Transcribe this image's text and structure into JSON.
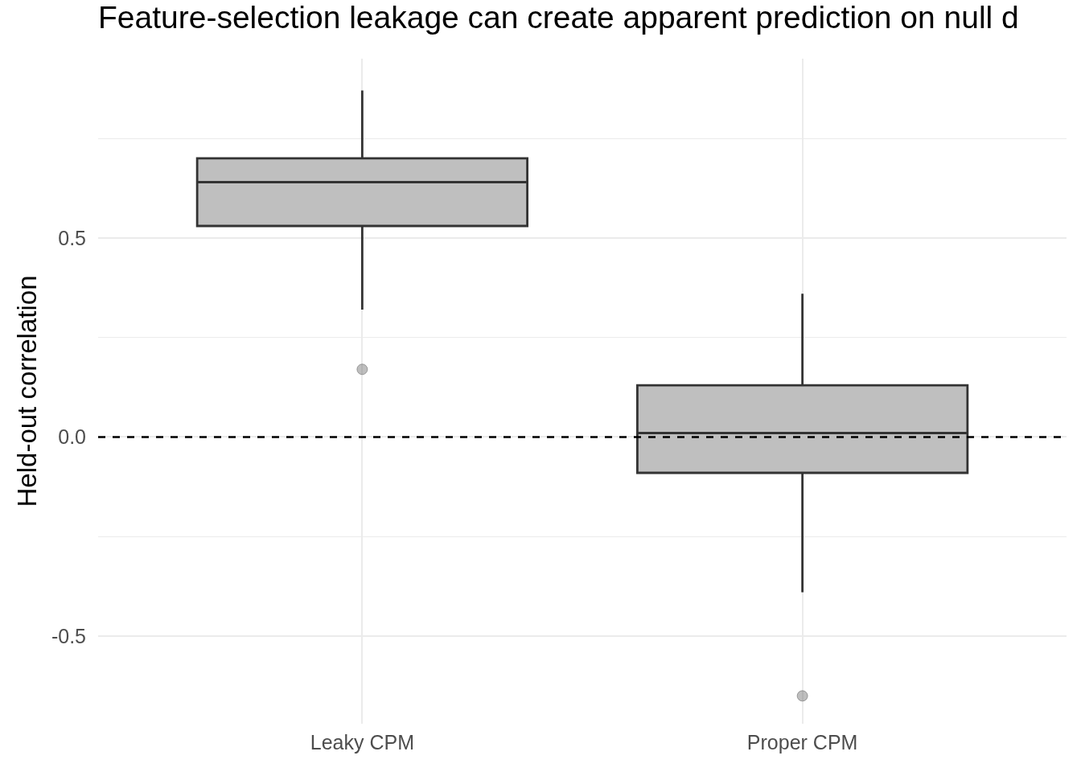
{
  "chart_data": {
    "type": "box",
    "title": "Feature-selection leakage can create apparent prediction on null d",
    "ylabel": "Held-out correlation",
    "categories": [
      "Leaky CPM",
      "Proper CPM"
    ],
    "colors": [
      "#bfbfbf",
      "#bfbfbf"
    ],
    "boxes": [
      {
        "low": 0.32,
        "q1": 0.53,
        "median": 0.64,
        "q3": 0.7,
        "high": 0.87,
        "outliers": [
          0.17
        ]
      },
      {
        "low": -0.39,
        "q1": -0.09,
        "median": 0.01,
        "q3": 0.13,
        "high": 0.36,
        "outliers": [
          -0.65
        ]
      }
    ],
    "ylim": [
      -0.72,
      0.95
    ],
    "yticks": [
      -0.5,
      {
        "value": -0.25,
        "label": null
      },
      {
        "value": 0,
        "label": "0.0"
      },
      {
        "value": 0.25,
        "label": null
      },
      0.5,
      {
        "value": 0.75,
        "label": null
      }
    ],
    "ref_lines": [
      {
        "axis": "y",
        "value": 0,
        "color": "#000000",
        "line_style": "dashed"
      }
    ],
    "grid": true
  }
}
